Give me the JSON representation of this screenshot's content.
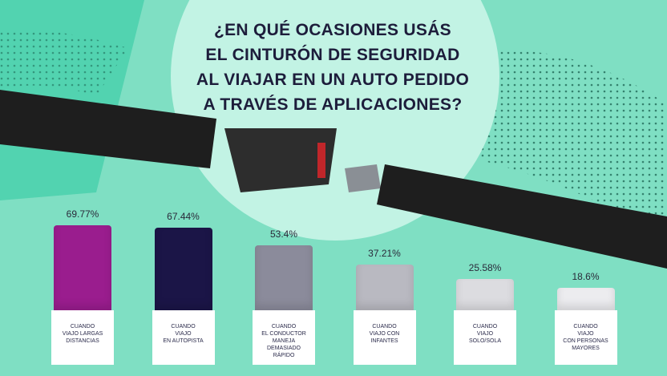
{
  "chart_data": {
    "type": "bar",
    "title": "¿EN QUÉ OCASIONES USÁS\nEL CINTURÓN DE SEGURIDAD\nAL VIAJAR EN UN AUTO PEDIDO\nA TRAVÉS DE APLICACIONES?",
    "categories": [
      "CUANDO\nVIAJO LARGAS\nDISTANCIAS",
      "CUANDO\nVIAJO\nEN AUTOPISTA",
      "CUANDO\nEL CONDUCTOR\nMANEJA\nDEMASIADO\nRÁPIDO",
      "CUANDO\nVIAJO CON\nINFANTES",
      "CUANDO\nVIAJO\nSOLO/SOLA",
      "CUANDO\nVIAJO\nCON PERSONAS\nMAYORES"
    ],
    "values": [
      69.77,
      67.44,
      53.4,
      37.21,
      25.58,
      18.6
    ],
    "value_labels": [
      "69.77%",
      "67.44%",
      "53.4%",
      "37.21%",
      "25.58%",
      "18.6%"
    ],
    "colors": [
      "#9a1d8e",
      "#1b1547",
      "#8b8b9b",
      "#b9b9c1",
      "#dcdce0",
      "#ececef"
    ],
    "ylim": [
      0,
      100
    ]
  }
}
